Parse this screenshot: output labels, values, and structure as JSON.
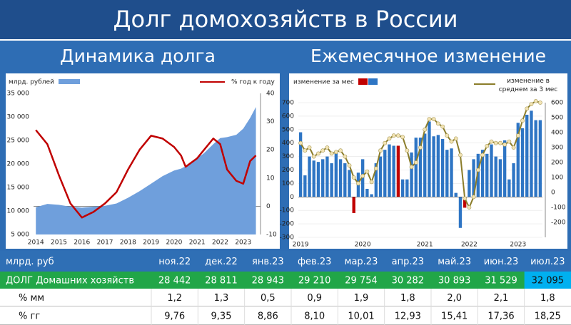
{
  "header": {
    "title": "Долг домохозяйств в России",
    "left_subtitle": "Динамика долга",
    "right_subtitle": "Ежемесячное изменение"
  },
  "chart_data": [
    {
      "type": "area-line",
      "xlim": [
        2013.9,
        2023.75
      ],
      "xticks": [
        2014,
        2015,
        2016,
        2017,
        2018,
        2019,
        2020,
        2021,
        2022,
        2023
      ],
      "ylim": [
        5000,
        35000
      ],
      "yticks": [
        {
          "value": 5000,
          "label": "5 000"
        },
        {
          "value": 10000,
          "label": "10 000"
        },
        {
          "value": 15000,
          "label": "15 000"
        },
        {
          "value": 20000,
          "label": "20 000"
        },
        {
          "value": 25000,
          "label": "25 000"
        },
        {
          "value": 30000,
          "label": "30 000"
        },
        {
          "value": 35000,
          "label": "35 000"
        }
      ],
      "y2lim": [
        -10,
        40
      ],
      "y2ticks": [
        -10,
        0,
        10,
        20,
        30,
        40
      ],
      "x": [
        2014,
        2014.5,
        2015,
        2015.5,
        2016,
        2016.5,
        2017,
        2017.5,
        2018,
        2018.5,
        2019,
        2019.5,
        2020,
        2020.3,
        2020.5,
        2021,
        2021.3,
        2021.7,
        2022,
        2022.3,
        2022.7,
        2023,
        2023.3,
        2023.55
      ],
      "series": [
        {
          "name": "млрд. рублей",
          "color": "#6f9fdc",
          "values": [
            10800,
            11500,
            11300,
            10900,
            10700,
            10900,
            11100,
            11600,
            12800,
            14200,
            15800,
            17400,
            18600,
            19000,
            19500,
            21200,
            22300,
            24200,
            25500,
            25700,
            26200,
            27500,
            29800,
            32100
          ]
        },
        {
          "name": "% год к году",
          "color": "#c00000",
          "axis": "y2",
          "values": [
            27,
            22,
            11,
            1,
            -4,
            -2,
            1,
            5,
            13,
            20,
            25,
            24,
            21,
            18,
            14,
            17,
            20,
            24,
            22,
            13,
            9,
            8,
            16,
            18
          ]
        }
      ]
    },
    {
      "type": "bar-line",
      "ylim": [
        -300,
        700
      ],
      "yticks": [
        -300,
        -200,
        -100,
        0,
        100,
        200,
        300,
        400,
        500,
        600,
        700
      ],
      "y2lim": [
        -300,
        600
      ],
      "y2ticks": [
        -200,
        -100,
        0,
        100,
        200,
        300,
        400,
        500,
        600
      ],
      "categories": [
        "2019",
        null,
        null,
        null,
        null,
        null,
        null,
        null,
        null,
        null,
        null,
        null,
        null,
        null,
        "2020",
        null,
        null,
        null,
        null,
        null,
        null,
        null,
        null,
        null,
        null,
        null,
        null,
        null,
        "2021",
        null,
        null,
        null,
        null,
        null,
        null,
        null,
        null,
        null,
        "2022",
        null,
        null,
        null,
        null,
        null,
        null,
        null,
        null,
        null,
        null,
        "2023",
        null,
        null,
        null,
        null,
        null
      ],
      "series": [
        {
          "name": "изменение за мес",
          "color": "#2e75c4",
          "colors": [
            "#2e75c4",
            "#2e75c4",
            "#2e75c4",
            "#2e75c4",
            "#2e75c4",
            "#2e75c4",
            "#2e75c4",
            "#2e75c4",
            "#2e75c4",
            "#2e75c4",
            "#2e75c4",
            "#2e75c4",
            "#c00000",
            "#2e75c4",
            "#2e75c4",
            "#2e75c4",
            "#2e75c4",
            "#2e75c4",
            "#2e75c4",
            "#2e75c4",
            "#2e75c4",
            "#2e75c4",
            "#c00000",
            "#2e75c4",
            "#2e75c4",
            "#2e75c4",
            "#2e75c4",
            "#2e75c4",
            "#2e75c4",
            "#2e75c4",
            "#2e75c4",
            "#2e75c4",
            "#2e75c4",
            "#2e75c4",
            "#2e75c4",
            "#2e75c4",
            "#2e75c4",
            "#c00000",
            "#2e75c4",
            "#2e75c4",
            "#2e75c4",
            "#2e75c4",
            "#2e75c4",
            "#2e75c4",
            "#2e75c4",
            "#2e75c4",
            "#2e75c4",
            "#2e75c4",
            "#2e75c4",
            "#2e75c4",
            "#2e75c4",
            "#2e75c4",
            "#2e75c4",
            "#2e75c4",
            "#2e75c4"
          ],
          "values": [
            480,
            160,
            300,
            270,
            260,
            280,
            300,
            250,
            330,
            280,
            250,
            200,
            -120,
            180,
            280,
            60,
            20,
            250,
            300,
            350,
            390,
            380,
            380,
            130,
            130,
            330,
            440,
            440,
            470,
            560,
            450,
            460,
            430,
            350,
            360,
            30,
            -230,
            -80,
            200,
            280,
            320,
            350,
            320,
            390,
            300,
            280,
            420,
            130,
            250,
            550,
            510,
            610,
            640,
            570,
            570
          ]
        },
        {
          "name": "изменение в среднем за 3 мес",
          "color": "#8b7d2a",
          "axis": "y2",
          "values": [
            330,
            280,
            300,
            240,
            260,
            280,
            300,
            260,
            270,
            280,
            240,
            180,
            100,
            60,
            110,
            140,
            70,
            160,
            280,
            330,
            360,
            380,
            380,
            370,
            280,
            170,
            200,
            300,
            420,
            490,
            490,
            460,
            440,
            380,
            340,
            360,
            250,
            -40,
            -100,
            -30,
            150,
            250,
            310,
            340,
            330,
            330,
            320,
            340,
            300,
            380,
            480,
            560,
            590,
            610,
            600
          ]
        }
      ]
    }
  ],
  "table": {
    "header": [
      "млрд. руб",
      "ноя.22",
      "дек.22",
      "янв.23",
      "фев.23",
      "мар.23",
      "апр.23",
      "май.23",
      "июн.23",
      "июл.23"
    ],
    "rows": [
      [
        "ДОЛГ Домашних хозяйств",
        "28 442",
        "28 811",
        "28 943",
        "29 210",
        "29 754",
        "30 282",
        "30 893",
        "31 529",
        "32 095"
      ],
      [
        "% мм",
        "1,2",
        "1,3",
        "0,5",
        "0,9",
        "1,9",
        "1,8",
        "2,0",
        "2,1",
        "1,8"
      ],
      [
        "% гг",
        "9,76",
        "9,35",
        "8,86",
        "8,10",
        "10,01",
        "12,93",
        "15,41",
        "17,36",
        "18,25"
      ]
    ]
  }
}
